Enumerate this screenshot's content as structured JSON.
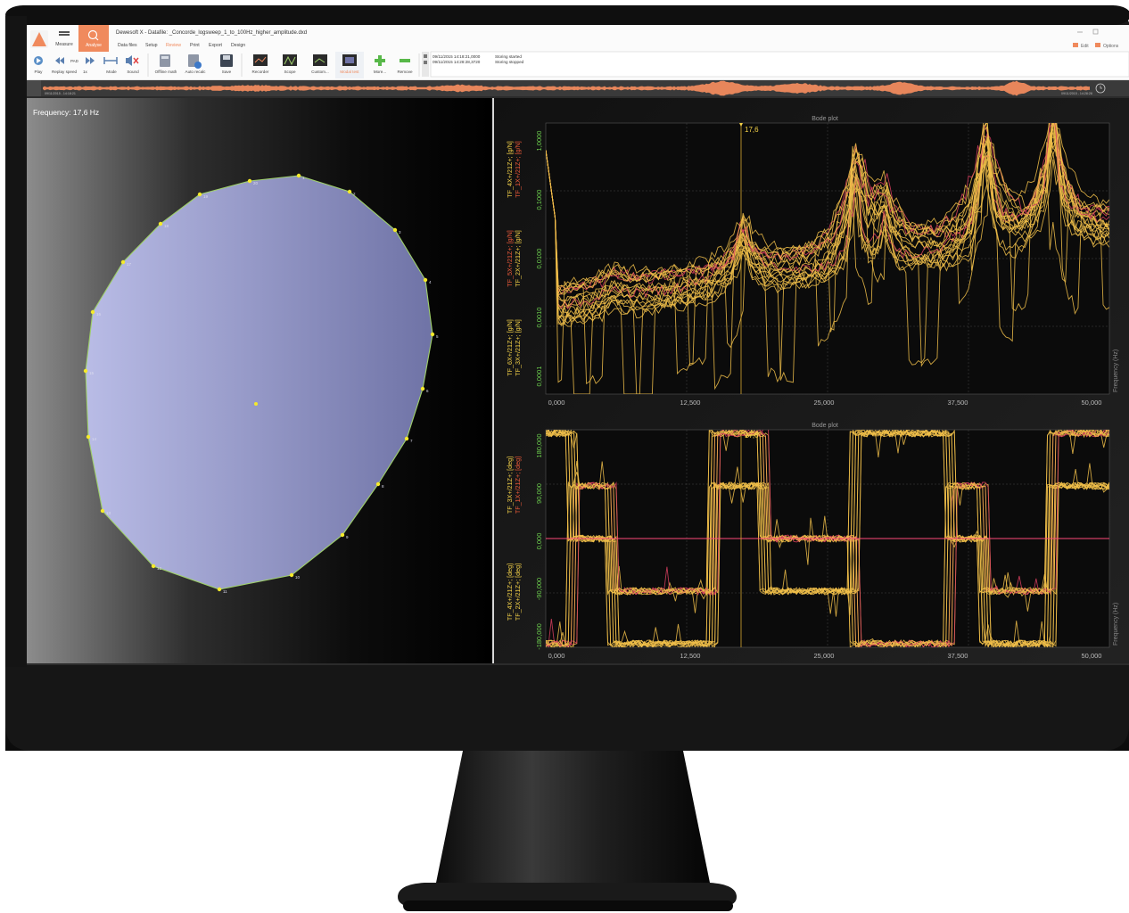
{
  "app": {
    "title": "Dewesoft X - Datafile: _Concorde_logsweep_1_to_100Hz_higher_amplitude.dxd",
    "accent": "#f08a5d",
    "top_right": {
      "edit": "Edit",
      "options": "Options"
    }
  },
  "mode_buttons": [
    {
      "label": "Measure",
      "icon": "measure-icon"
    },
    {
      "label": "Analyse",
      "icon": "search-icon",
      "active": true
    }
  ],
  "menu_tabs": [
    {
      "label": "Data files"
    },
    {
      "label": "Setup"
    },
    {
      "label": "Review",
      "active": true
    },
    {
      "label": "Print"
    },
    {
      "label": "Export"
    },
    {
      "label": "Design"
    }
  ],
  "toolbar": {
    "play": "Play",
    "replay_speed": "Replay speed",
    "speed_value": "1x",
    "mode": "Mode",
    "sound": "Sound",
    "offline_math": "Offline math",
    "auto_recalc": "Auto recalc",
    "save": "Save",
    "recorder": "Recorder",
    "scope": "Scope",
    "custom": "Custom...",
    "modal_test": "Modal test",
    "more": "More...",
    "remove": "Remove"
  },
  "event_log": [
    {
      "time": "09/11/2015 14:18:21,0000",
      "text": "Storing started"
    },
    {
      "time": "09/11/2015 14:28:28,3720",
      "text": "Storing stopped"
    }
  ],
  "timeline": {
    "start": "09/11/2015 - 14:18:21",
    "end": "09/11/2015 - 14:28:28"
  },
  "geometry_view": {
    "frequency_label": "Frequency: 17,6 Hz",
    "fill_color": "#8a8fc8",
    "edge_color": "#9fd06a",
    "node_color": "#f6ea2a",
    "node_labels": [
      "1",
      "2",
      "3",
      "4",
      "5",
      "6",
      "7",
      "8",
      "9",
      "10",
      "11",
      "12",
      "13",
      "14",
      "15",
      "16",
      "17",
      "18",
      "19",
      "20"
    ]
  },
  "bode_magnitude": {
    "title": "Bode plot",
    "cursor_value": "17,6",
    "y_ticks": [
      "1,0000",
      "0,1000",
      "0,0100",
      "0,0010",
      "0,0001"
    ],
    "x_ticks": [
      "0,000",
      "12,500",
      "25,000",
      "37,500",
      "50,000"
    ],
    "x_axis_label": "Frequency (Hz)",
    "channels": [
      {
        "name": "TF_6X+/21Z+; [g/N]",
        "color": "#f6d348"
      },
      {
        "name": "TF_3X+/21Z+; [g/N]",
        "color": "#f6d348"
      },
      {
        "name": "TF_5X+/21Z+; [g/N]",
        "color": "#ef5a3a"
      },
      {
        "name": "TF_2X+/21Z+; [g/N]",
        "color": "#f6d348"
      },
      {
        "name": "TF_4X+/21Z+; [g/N]",
        "color": "#f6d348"
      },
      {
        "name": "TF_1X+/21Z+; [g/N]",
        "color": "#ef5a3a"
      }
    ]
  },
  "bode_phase": {
    "title": "Bode plot",
    "cursor_value": "17,6",
    "y_ticks": [
      "180,000",
      "90,000",
      "0,000",
      "-90,000",
      "-180,000"
    ],
    "x_ticks": [
      "0,000",
      "12,500",
      "25,000",
      "37,500",
      "50,000"
    ],
    "x_axis_label": "Frequency (Hz)",
    "channels": [
      {
        "name": "TF_4X+/21Z+; [deg]",
        "color": "#f6d348"
      },
      {
        "name": "TF_2X+/21Z+; [deg]",
        "color": "#f6d348"
      },
      {
        "name": "TF_3X+/21Z+; [deg]",
        "color": "#f6d348"
      },
      {
        "name": "TF_1X+/21Z+; [deg]",
        "color": "#ef5a3a"
      }
    ]
  }
}
